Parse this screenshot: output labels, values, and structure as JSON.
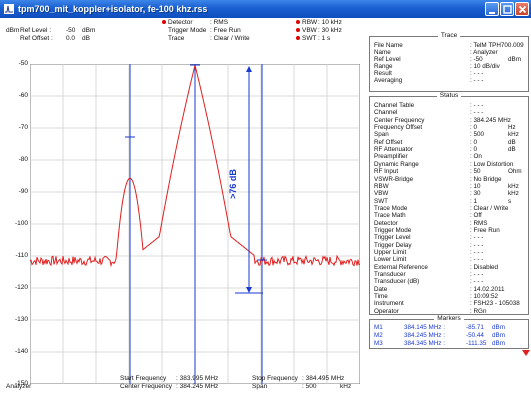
{
  "window": {
    "title": "tpm700_mit_koppler+isolator, fe-100 khz.rss",
    "app_icon": "spectrum-icon",
    "buttons": [
      "minimize-icon",
      "maximize-icon",
      "close-icon"
    ]
  },
  "header": {
    "unit": "dBm",
    "ref_level_label": "Ref Level :",
    "ref_level_value": "-50",
    "ref_level_unit": "dBm",
    "ref_offset_label": "Ref Offset :",
    "ref_offset_value": "0.0",
    "ref_offset_unit": "dB",
    "detector_label": "Detector",
    "detector_value": ": RMS",
    "trigger_label": "Trigger Mode",
    "trigger_value": ": Free Run",
    "trace_label": "Trace",
    "trace_value": ": Clear / Write",
    "rbw_label": "RBW",
    "rbw_value": ": 10 kHz",
    "vbw_label": "VBW",
    "vbw_value": ": 30 kHz",
    "swt_label": "SWT",
    "swt_value": ": 1 s"
  },
  "plot": {
    "y_ticks": [
      "-50",
      "-60",
      "-70",
      "-80",
      "-90",
      "-100",
      "-110",
      "-120",
      "-130",
      "-140",
      "-150"
    ],
    "markers": [
      "M1",
      "M2",
      "M3"
    ],
    "annotation": ">76 dB",
    "colors": {
      "trace": "#e02020",
      "marker": "#1a3ad0",
      "grid": "#c8c8c8"
    }
  },
  "footer": {
    "mode": "Analyzer",
    "start_label": "Start Frequency",
    "start_value": ": 383.995 MHz",
    "center_label": "Center Frequency",
    "center_value": ": 384.245 MHz",
    "stop_label": "Stop Frequency",
    "stop_value": ": 384.495 MHz",
    "span_label": "Span",
    "span_value": ": 500",
    "span_unit": "kHz"
  },
  "trace_section": {
    "title": "Trace",
    "rows": [
      {
        "k": "File Name",
        "v": ": TelM TPH700.009",
        "u": ""
      },
      {
        "k": "Name",
        "v": ": Analyzer",
        "u": ""
      },
      {
        "k": "Ref Level",
        "v": ": -50",
        "u": "dBm"
      },
      {
        "k": "Range",
        "v": ": 10 dB/div",
        "u": ""
      },
      {
        "k": "Result",
        "v": ": - - -",
        "u": ""
      },
      {
        "k": "Averaging",
        "v": ": - - -",
        "u": ""
      }
    ]
  },
  "status_section": {
    "title": "Status",
    "rows": [
      {
        "k": "Channel Table",
        "v": ": - - -",
        "u": ""
      },
      {
        "k": "Channel",
        "v": ": - - -",
        "u": ""
      },
      {
        "k": "Center Frequency",
        "v": ": 384.245 MHz",
        "u": ""
      },
      {
        "k": "Frequency Offset",
        "v": ": 0",
        "u": "Hz"
      },
      {
        "k": "Span",
        "v": ": 500",
        "u": "kHz"
      },
      {
        "k": "Ref Offset",
        "v": ": 0",
        "u": "dB"
      },
      {
        "k": "RF Attenuator",
        "v": ": 0",
        "u": "dB"
      },
      {
        "k": "Preamplifier",
        "v": ": On",
        "u": ""
      },
      {
        "k": "Dynamic Range",
        "v": ": Low Distortion",
        "u": ""
      },
      {
        "k": "RF Input",
        "v": ": 50",
        "u": "Ohm"
      },
      {
        "k": "VSWR-Bridge",
        "v": ": No Bridge",
        "u": ""
      },
      {
        "k": "RBW",
        "v": ": 10",
        "u": "kHz"
      },
      {
        "k": "VBW",
        "v": ": 30",
        "u": "kHz"
      },
      {
        "k": "SWT",
        "v": ": 1",
        "u": "s"
      },
      {
        "k": "Trace Mode",
        "v": ": Clear / Write",
        "u": ""
      },
      {
        "k": "Trace Math",
        "v": ": Off",
        "u": ""
      },
      {
        "k": "Detector",
        "v": ": RMS",
        "u": ""
      },
      {
        "k": "Trigger Mode",
        "v": ": Free Run",
        "u": ""
      },
      {
        "k": "Trigger Level",
        "v": ": - - -",
        "u": ""
      },
      {
        "k": "Trigger Delay",
        "v": ": - - -",
        "u": ""
      },
      {
        "k": "Upper Limit",
        "v": ": - - -",
        "u": ""
      },
      {
        "k": "Lower Limit",
        "v": ": - - -",
        "u": ""
      },
      {
        "k": "External Reference",
        "v": ": Disabled",
        "u": ""
      },
      {
        "k": "Transducer",
        "v": ": - - -",
        "u": ""
      },
      {
        "k": "Transducer (dB)",
        "v": ": - - -",
        "u": ""
      },
      {
        "k": "Date",
        "v": ": 14.02.2011",
        "u": ""
      },
      {
        "k": "Time",
        "v": ": 10:09:52",
        "u": ""
      },
      {
        "k": "Instrument",
        "v": ": FSH23 - 105038",
        "u": ""
      },
      {
        "k": "Operator",
        "v": ": RGn",
        "u": ""
      }
    ]
  },
  "markers_section": {
    "title": "Markers",
    "rows": [
      {
        "n": "M1",
        "f": "384.145 MHz :",
        "a": "-85.71",
        "u": "dBm"
      },
      {
        "n": "M2",
        "f": "384.245 MHz :",
        "a": "-50.44",
        "u": "dBm"
      },
      {
        "n": "M3",
        "f": "384.345 MHz :",
        "a": "-111.35",
        "u": "dBm"
      }
    ]
  }
}
